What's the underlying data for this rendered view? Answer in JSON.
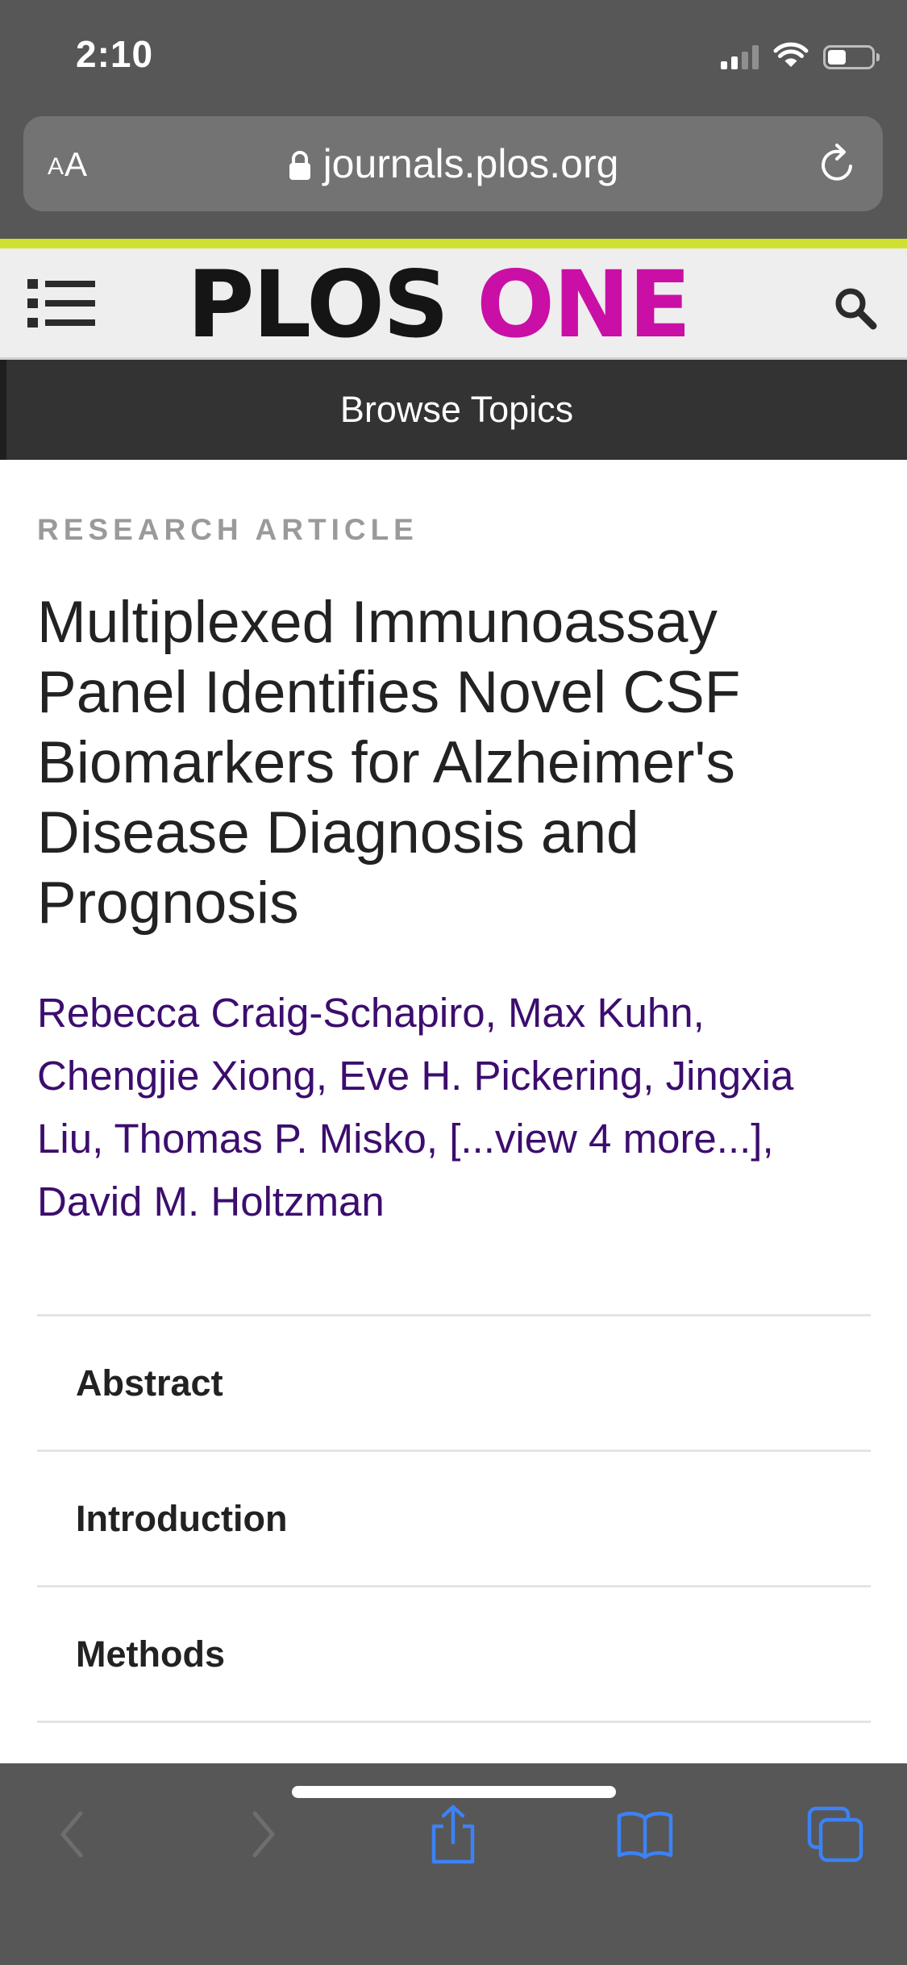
{
  "status_bar": {
    "time": "2:10",
    "icons": [
      "cellular-signal-icon",
      "wifi-icon",
      "battery-icon"
    ]
  },
  "browser": {
    "reader_button": {
      "small": "A",
      "large": "A"
    },
    "url": "journals.plos.org",
    "lock_icon": "lock-icon",
    "reload_icon": "reload-icon"
  },
  "site_header": {
    "menu_icon": "list-menu-icon",
    "logo_part1": "PLOS",
    "logo_part2": "ONE",
    "search_icon": "search-icon",
    "accent_color": "#d0e030",
    "logo_accent_color": "#c90fa6"
  },
  "browse_bar": {
    "label": "Browse Topics"
  },
  "article": {
    "type": "RESEARCH ARTICLE",
    "title": "Multiplexed Immunoassay Panel Identifies Novel CSF Biomarkers for Alzheimer's Disease Diagnosis and Prognosis",
    "authors": [
      "Rebecca Craig-Schapiro",
      "Max Kuhn",
      "Chengjie Xiong",
      "Eve H. Pickering",
      "Jingxia Liu",
      "Thomas P. Misko",
      "[...view 4 more...]",
      "David M. Holtzman"
    ],
    "author_link_color": "#3c0d6e"
  },
  "sections": [
    {
      "label": "Abstract"
    },
    {
      "label": "Introduction"
    },
    {
      "label": "Methods"
    }
  ],
  "toolbar": {
    "items": [
      "back-icon",
      "forward-icon",
      "share-icon",
      "bookmarks-icon",
      "tabs-icon"
    ],
    "active_color": "#3b82f6",
    "disabled_color": "#6e6e6e"
  }
}
